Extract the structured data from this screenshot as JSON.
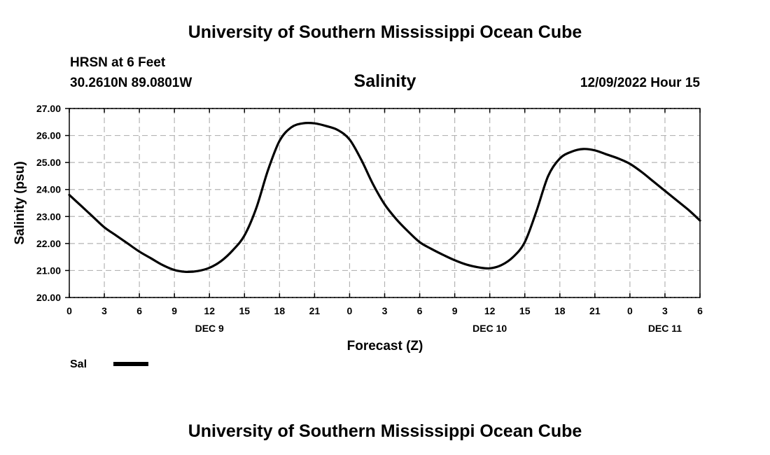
{
  "header": {
    "title": "University of Southern Mississippi Ocean Cube",
    "station": "HRSN at 6 Feet",
    "coords": "30.2610N  89.0801W",
    "variable": "Salinity",
    "datetime": "12/09/2022 Hour 15"
  },
  "footer": {
    "title": "University of Southern Mississippi Ocean Cube"
  },
  "legend": {
    "label": "Sal",
    "color": "#000000"
  },
  "chart_data": {
    "type": "line",
    "title": "Salinity",
    "xlabel": "Forecast (Z)",
    "ylabel": "Salinity (psu)",
    "xlim": [
      0,
      54
    ],
    "ylim": [
      20,
      27
    ],
    "x_unit": "hours since 12/09/2022 00Z",
    "x_tick_positions": [
      0,
      3,
      6,
      9,
      12,
      15,
      18,
      21,
      24,
      27,
      30,
      33,
      36,
      39,
      42,
      45,
      48,
      51,
      54
    ],
    "x_tick_labels": [
      "0",
      "3",
      "6",
      "9",
      "12",
      "15",
      "18",
      "21",
      "0",
      "3",
      "6",
      "9",
      "12",
      "15",
      "18",
      "21",
      "0",
      "3",
      "6"
    ],
    "y_tick_values": [
      20,
      21,
      22,
      23,
      24,
      25,
      26,
      27
    ],
    "y_tick_labels": [
      "20.00",
      "21.00",
      "22.00",
      "23.00",
      "24.00",
      "25.00",
      "26.00",
      "27.00"
    ],
    "date_labels": [
      {
        "x": 12,
        "text": "DEC 9"
      },
      {
        "x": 36,
        "text": "DEC 10"
      },
      {
        "x": 51,
        "text": "DEC 11"
      }
    ],
    "grid": true,
    "series": [
      {
        "name": "Sal",
        "color": "#000000",
        "x": [
          0,
          1,
          2,
          3,
          4,
          5,
          6,
          7,
          8,
          9,
          10,
          11,
          12,
          13,
          14,
          15,
          16,
          17,
          18,
          19,
          20,
          21,
          22,
          23,
          24,
          25,
          26,
          27,
          28,
          29,
          30,
          31,
          32,
          33,
          34,
          35,
          36,
          37,
          38,
          39,
          40,
          41,
          42,
          43,
          44,
          45,
          46,
          47,
          48,
          49,
          50,
          51,
          52,
          53,
          54
        ],
        "values": [
          23.8,
          23.4,
          23.0,
          22.6,
          22.3,
          22.0,
          21.7,
          21.45,
          21.2,
          21.02,
          20.95,
          20.98,
          21.1,
          21.35,
          21.75,
          22.3,
          23.3,
          24.7,
          25.8,
          26.3,
          26.45,
          26.45,
          26.35,
          26.2,
          25.85,
          25.1,
          24.2,
          23.45,
          22.9,
          22.45,
          22.05,
          21.8,
          21.58,
          21.38,
          21.22,
          21.12,
          21.08,
          21.2,
          21.5,
          22.05,
          23.2,
          24.5,
          25.15,
          25.4,
          25.5,
          25.45,
          25.3,
          25.15,
          24.95,
          24.65,
          24.3,
          23.95,
          23.6,
          23.25,
          22.85
        ]
      }
    ]
  }
}
